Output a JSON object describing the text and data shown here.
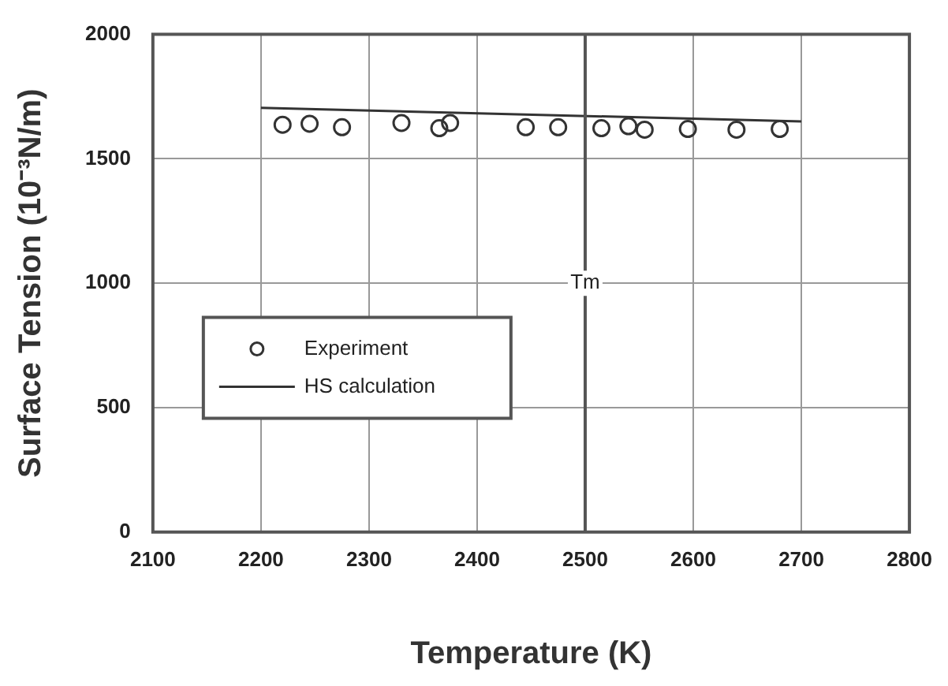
{
  "chart_data": {
    "type": "scatter",
    "xlabel": "Temperature (K)",
    "ylabel": "Surface Tension (10⁻³N/m)",
    "series": [
      {
        "name": "Experiment",
        "marker": "circle",
        "color": "#333333",
        "x": [
          2220,
          2245,
          2275,
          2330,
          2365,
          2375,
          2445,
          2475,
          2515,
          2540,
          2555,
          2595,
          2640,
          2680
        ],
        "values": [
          1637,
          1641,
          1627,
          1644,
          1623,
          1644,
          1627,
          1627,
          1623,
          1631,
          1617,
          1620,
          1617,
          1620
        ]
      },
      {
        "name": "HS calculation",
        "type": "line",
        "marker": "none",
        "color": "#333333",
        "x": [
          2200,
          2700
        ],
        "values": [
          1705,
          1650
        ]
      }
    ],
    "xlim": [
      2100,
      2800
    ],
    "xticks": [
      2100,
      2200,
      2300,
      2400,
      2500,
      2600,
      2700,
      2800
    ],
    "ylim": [
      0,
      2000
    ],
    "yticks": [
      0,
      500,
      1000,
      1500,
      2000
    ],
    "ref_lines": [
      {
        "axis": "x",
        "value": 2500,
        "label": "Tm"
      }
    ],
    "grid": true,
    "legend": "center left"
  }
}
